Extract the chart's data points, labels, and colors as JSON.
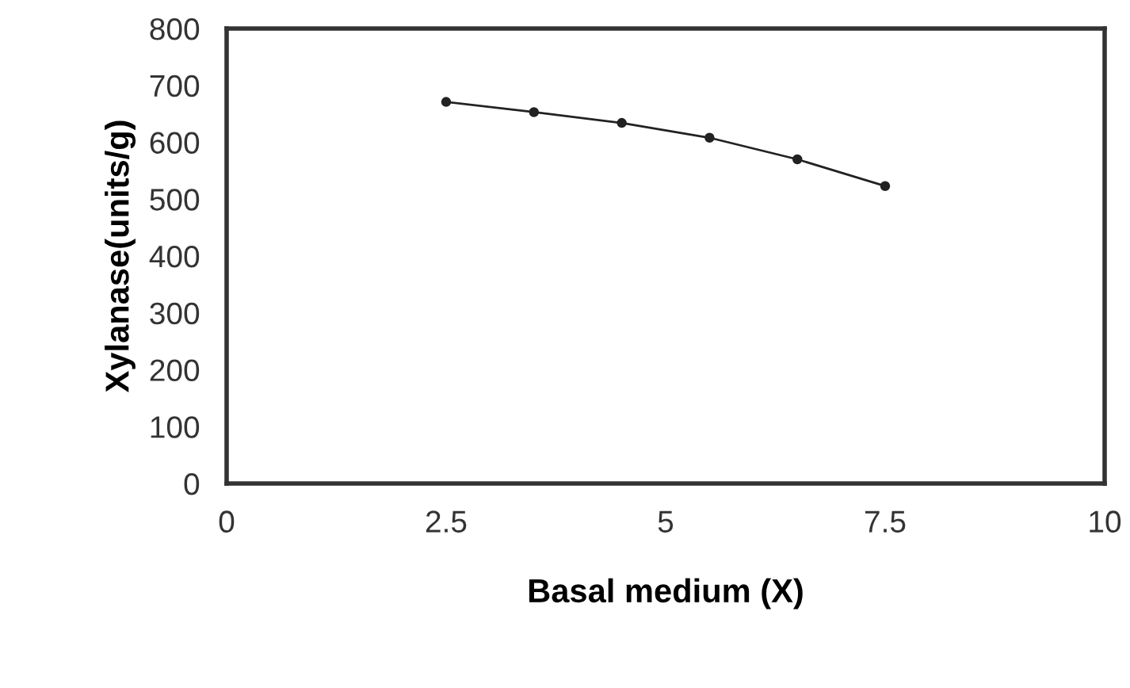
{
  "chart_data": {
    "type": "line",
    "xlabel": "Basal medium (X)",
    "ylabel": "Xylanase(units/g)",
    "x": [
      2.5,
      3.5,
      4.5,
      5.5,
      6.5,
      7.5
    ],
    "series": [
      {
        "color": "#222222",
        "values": [
          671,
          653,
          634,
          608,
          570,
          523
        ]
      }
    ],
    "xlim": [
      0,
      10
    ],
    "xticks": [
      0,
      2.5,
      5,
      7.5,
      10
    ],
    "ylim": [
      0,
      800
    ],
    "yticks": [
      0,
      100,
      200,
      300,
      400,
      500,
      600,
      700,
      800
    ],
    "grid": false,
    "legend": false,
    "marker": "circle",
    "line_style": "solid"
  }
}
